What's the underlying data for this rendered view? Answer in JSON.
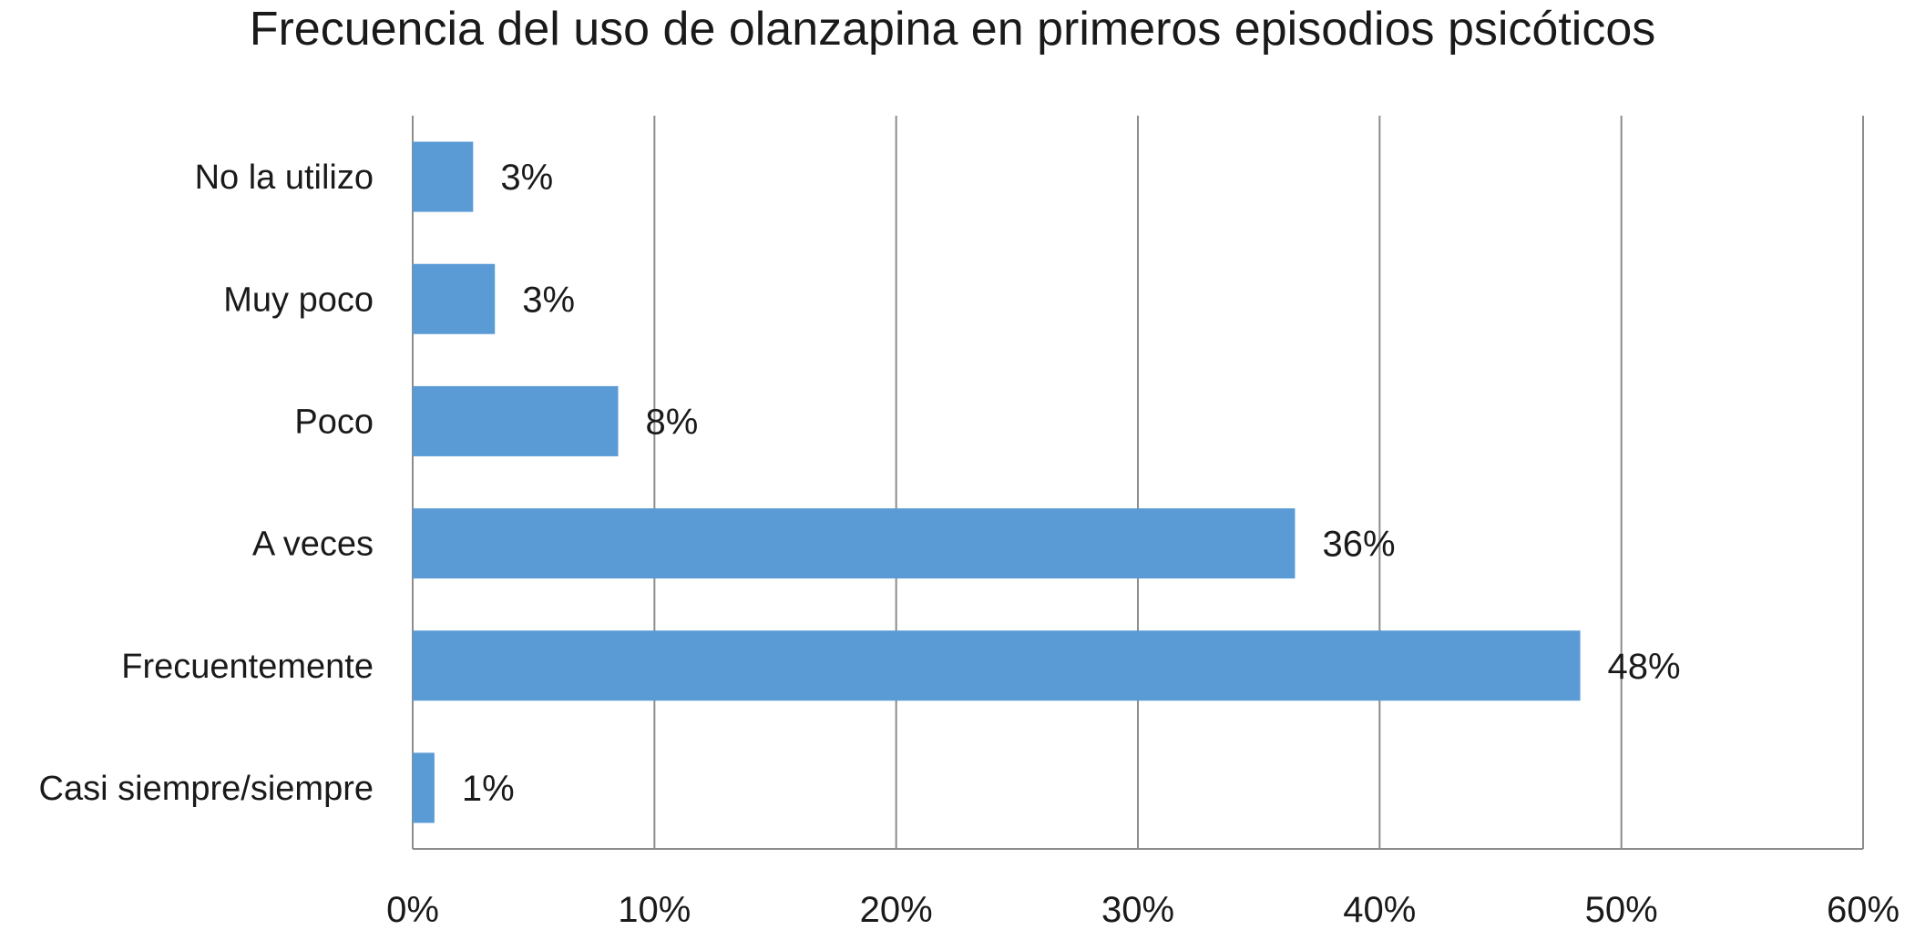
{
  "chart_data": {
    "type": "bar",
    "orientation": "horizontal",
    "title": "Frecuencia del uso de olanzapina en primeros episodios psicóticos",
    "xlabel": "",
    "ylabel": "",
    "categories": [
      "No la utilizo",
      "Muy poco",
      "Poco",
      "A veces",
      "Frecuentemente",
      "Casi siempre/siempre"
    ],
    "values": [
      2.5,
      3.4,
      8.5,
      36.5,
      48.3,
      0.9
    ],
    "data_labels": [
      "3%",
      "3%",
      "8%",
      "36%",
      "48%",
      "1%"
    ],
    "xlim": [
      0,
      60
    ],
    "x_ticks": [
      0,
      10,
      20,
      30,
      40,
      50,
      60
    ],
    "x_tick_labels": [
      "0%",
      "10%",
      "20%",
      "30%",
      "40%",
      "50%",
      "60%"
    ],
    "grid": true,
    "legend": "none",
    "colors": {
      "bar": "#5B9BD5",
      "grid": "#8c8c8c",
      "text": "#1a1a1a"
    }
  }
}
